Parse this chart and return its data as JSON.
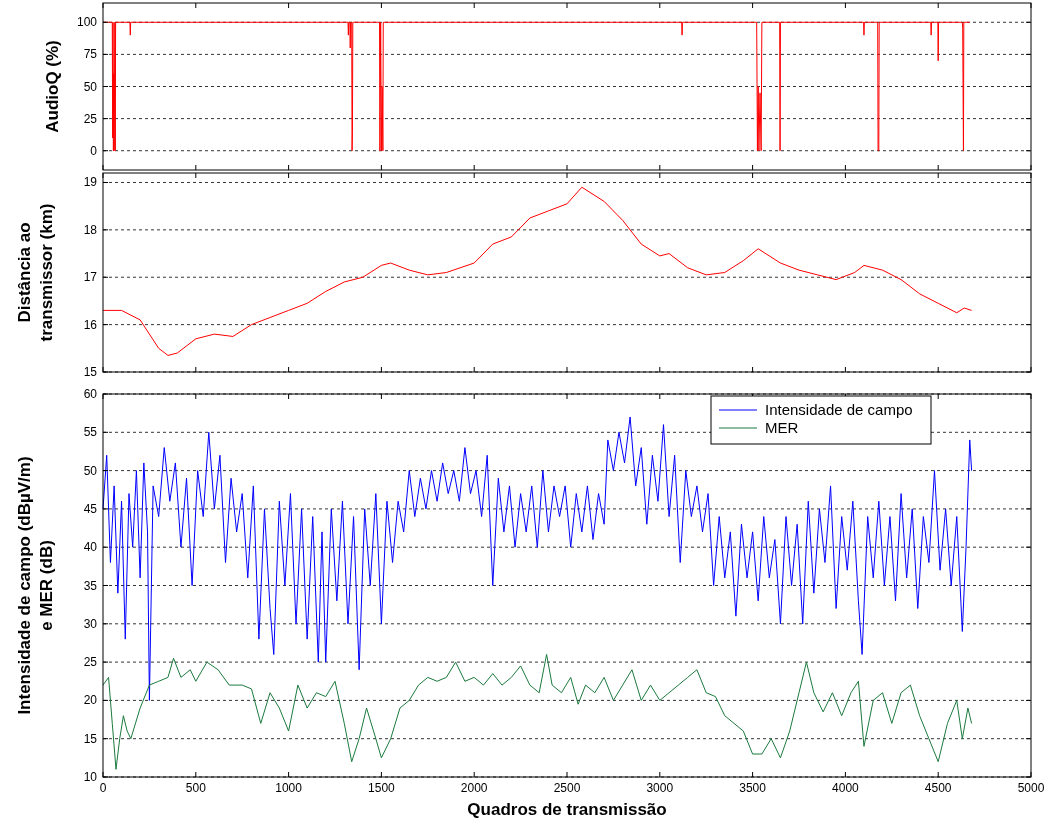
{
  "chart_data": [
    {
      "type": "line",
      "ylabel": "AudioQ (%)",
      "xlim": [
        0,
        5000
      ],
      "xticks": [
        0,
        500,
        1000,
        1500,
        2000,
        2500,
        3000,
        3500,
        4000,
        4500,
        5000
      ],
      "ylim": [
        -15,
        115
      ],
      "yticks": [
        0,
        25,
        50,
        75,
        100
      ],
      "grid": "y",
      "tick_labels": "y",
      "series": [
        {
          "color": "#ff0000",
          "x": [
            0,
            50,
            52,
            54,
            56,
            58,
            60,
            62,
            64,
            66,
            68,
            70,
            145,
            147,
            149,
            1320,
            1322,
            1324,
            1330,
            1332,
            1334,
            1340,
            1342,
            1344,
            1346,
            1490,
            1492,
            1496,
            1500,
            1504,
            1508,
            1510,
            3118,
            3120,
            3122,
            3522,
            3526,
            3530,
            3534,
            3540,
            3546,
            3550,
            3646,
            3648,
            3650,
            4098,
            4100,
            4102,
            4174,
            4176,
            4180,
            4182,
            4460,
            4462,
            4464,
            4498,
            4500,
            4502,
            4630,
            4632,
            4636,
            4638,
            4670
          ],
          "values": [
            100,
            100,
            10,
            100,
            0,
            60,
            0,
            45,
            100,
            0,
            100,
            100,
            100,
            90,
            100,
            100,
            90,
            100,
            100,
            80,
            100,
            100,
            0,
            15,
            100,
            100,
            0,
            100,
            0,
            50,
            0,
            100,
            100,
            90,
            100,
            100,
            0,
            50,
            0,
            45,
            0,
            100,
            100,
            0,
            100,
            100,
            90,
            100,
            100,
            0,
            0,
            100,
            100,
            90,
            100,
            100,
            70,
            100,
            100,
            95,
            0,
            100,
            100
          ]
        }
      ]
    },
    {
      "type": "line",
      "ylabel": "Distância ao\ntransmissor (km)",
      "xlim": [
        0,
        5000
      ],
      "xticks": [
        0,
        500,
        1000,
        1500,
        2000,
        2500,
        3000,
        3500,
        4000,
        4500,
        5000
      ],
      "ylim": [
        15,
        19.2
      ],
      "yticks": [
        15,
        16,
        17,
        18,
        19
      ],
      "grid": "y",
      "tick_labels": "y",
      "series": [
        {
          "color": "#ff0000",
          "x": [
            0,
            100,
            200,
            300,
            350,
            400,
            500,
            600,
            700,
            800,
            900,
            1000,
            1100,
            1200,
            1300,
            1400,
            1500,
            1550,
            1650,
            1750,
            1850,
            2000,
            2100,
            2200,
            2300,
            2400,
            2500,
            2580,
            2700,
            2800,
            2900,
            3000,
            3050,
            3150,
            3250,
            3350,
            3450,
            3530,
            3650,
            3750,
            3850,
            3950,
            4050,
            4100,
            4200,
            4300,
            4400,
            4500,
            4600,
            4640,
            4680
          ],
          "values": [
            16.3,
            16.3,
            16.1,
            15.5,
            15.35,
            15.4,
            15.7,
            15.8,
            15.75,
            16.0,
            16.15,
            16.3,
            16.45,
            16.7,
            16.9,
            17.0,
            17.25,
            17.3,
            17.15,
            17.05,
            17.1,
            17.3,
            17.7,
            17.85,
            18.25,
            18.4,
            18.55,
            18.9,
            18.6,
            18.2,
            17.7,
            17.45,
            17.5,
            17.2,
            17.05,
            17.1,
            17.35,
            17.6,
            17.3,
            17.15,
            17.05,
            16.95,
            17.1,
            17.25,
            17.15,
            16.95,
            16.65,
            16.45,
            16.25,
            16.35,
            16.3
          ]
        }
      ]
    },
    {
      "type": "line",
      "xlabel": "Quadros de transmissão",
      "ylabel": "Intensidade de campo (dBµV/m)\ne MER (dB)",
      "xlim": [
        0,
        5000
      ],
      "xticks": [
        0,
        500,
        1000,
        1500,
        2000,
        2500,
        3000,
        3500,
        4000,
        4500,
        5000
      ],
      "ylim": [
        10,
        60
      ],
      "yticks": [
        10,
        15,
        20,
        25,
        30,
        35,
        40,
        45,
        50,
        55,
        60
      ],
      "grid": "y",
      "legend": "top right",
      "series": [
        {
          "name": "Intensidade de campo",
          "color": "#0000ff",
          "x": [
            0,
            20,
            40,
            60,
            80,
            100,
            120,
            140,
            160,
            180,
            200,
            220,
            240,
            250,
            270,
            300,
            330,
            360,
            390,
            420,
            450,
            480,
            510,
            540,
            570,
            600,
            630,
            660,
            690,
            720,
            750,
            780,
            810,
            840,
            870,
            900,
            920,
            950,
            980,
            1010,
            1040,
            1070,
            1100,
            1130,
            1160,
            1180,
            1200,
            1230,
            1260,
            1290,
            1320,
            1350,
            1380,
            1410,
            1440,
            1470,
            1500,
            1530,
            1560,
            1590,
            1620,
            1650,
            1680,
            1710,
            1740,
            1770,
            1800,
            1830,
            1860,
            1890,
            1920,
            1950,
            1980,
            2010,
            2040,
            2070,
            2100,
            2130,
            2160,
            2190,
            2220,
            2250,
            2280,
            2310,
            2340,
            2370,
            2400,
            2430,
            2460,
            2490,
            2520,
            2550,
            2580,
            2610,
            2640,
            2670,
            2700,
            2720,
            2750,
            2780,
            2810,
            2840,
            2870,
            2900,
            2930,
            2960,
            2990,
            3020,
            3050,
            3080,
            3110,
            3140,
            3170,
            3200,
            3230,
            3260,
            3290,
            3320,
            3350,
            3380,
            3410,
            3440,
            3470,
            3500,
            3530,
            3560,
            3590,
            3620,
            3650,
            3680,
            3710,
            3740,
            3770,
            3800,
            3830,
            3860,
            3890,
            3920,
            3950,
            3980,
            4010,
            4040,
            4070,
            4090,
            4120,
            4150,
            4180,
            4210,
            4240,
            4270,
            4300,
            4330,
            4360,
            4390,
            4420,
            4450,
            4480,
            4510,
            4540,
            4570,
            4600,
            4630,
            4650,
            4670,
            4680
          ],
          "values": [
            45,
            52,
            38,
            48,
            34,
            46,
            28,
            47,
            40,
            50,
            36,
            51,
            42,
            20,
            48,
            44,
            53,
            46,
            51,
            40,
            49,
            35,
            50,
            44,
            55,
            45,
            52,
            38,
            49,
            42,
            47,
            36,
            48,
            28,
            45,
            32,
            26,
            46,
            35,
            47,
            30,
            45,
            28,
            44,
            25,
            42,
            25,
            45,
            33,
            46,
            30,
            44,
            24,
            45,
            35,
            47,
            30,
            46,
            38,
            46,
            42,
            50,
            44,
            49,
            45,
            50,
            46,
            51,
            47,
            50,
            46,
            53,
            47,
            50,
            44,
            52,
            35,
            49,
            42,
            48,
            40,
            47,
            42,
            48,
            40,
            50,
            42,
            48,
            44,
            48,
            40,
            47,
            42,
            48,
            41,
            47,
            43,
            54,
            50,
            55,
            51,
            57,
            48,
            53,
            43,
            52,
            46,
            56,
            44,
            52,
            38,
            50,
            44,
            48,
            42,
            47,
            35,
            44,
            36,
            42,
            31,
            43,
            36,
            42,
            33,
            44,
            36,
            41,
            30,
            44,
            35,
            43,
            30,
            46,
            34,
            45,
            38,
            48,
            32,
            44,
            37,
            46,
            33,
            26,
            44,
            36,
            46,
            35,
            44,
            33,
            47,
            36,
            45,
            32,
            44,
            38,
            50,
            37,
            45,
            35,
            44,
            29,
            40,
            54,
            50
          ]
        },
        {
          "name": "MER",
          "color": "#1b7a3e",
          "x": [
            0,
            30,
            50,
            70,
            90,
            110,
            130,
            150,
            200,
            250,
            300,
            350,
            380,
            420,
            470,
            500,
            560,
            620,
            680,
            750,
            800,
            850,
            900,
            950,
            1000,
            1050,
            1100,
            1150,
            1200,
            1250,
            1300,
            1340,
            1380,
            1420,
            1470,
            1500,
            1550,
            1600,
            1650,
            1700,
            1750,
            1800,
            1850,
            1900,
            1950,
            2000,
            2050,
            2100,
            2150,
            2200,
            2250,
            2300,
            2350,
            2390,
            2420,
            2470,
            2520,
            2560,
            2600,
            2650,
            2700,
            2750,
            2800,
            2850,
            2900,
            2950,
            3000,
            3050,
            3100,
            3150,
            3200,
            3250,
            3300,
            3350,
            3400,
            3450,
            3500,
            3550,
            3600,
            3650,
            3700,
            3750,
            3790,
            3830,
            3880,
            3930,
            3980,
            4030,
            4070,
            4100,
            4150,
            4200,
            4250,
            4300,
            4350,
            4400,
            4450,
            4500,
            4550,
            4600,
            4630,
            4660,
            4680
          ],
          "values": [
            22,
            23,
            17,
            11,
            15,
            18,
            16,
            15,
            19,
            22,
            22.5,
            23,
            25.5,
            23,
            24,
            22.5,
            25,
            24,
            22,
            22,
            21.5,
            17,
            21,
            19,
            16,
            22,
            19,
            21,
            20.5,
            22.5,
            17,
            12,
            15,
            19,
            15,
            12.5,
            15,
            19,
            20,
            22,
            23,
            22.5,
            23,
            25,
            22.5,
            23,
            22,
            23.5,
            22,
            23,
            24.5,
            22,
            21,
            26,
            22,
            21,
            23,
            19.5,
            22,
            21,
            23,
            20,
            22,
            24,
            20,
            22,
            20,
            21,
            22,
            23,
            24,
            21,
            20.5,
            18,
            17,
            16,
            13,
            13,
            15,
            12.5,
            16,
            21,
            25,
            21,
            18.5,
            21,
            18,
            21,
            22.5,
            14,
            20,
            21,
            17,
            21,
            22,
            18,
            15,
            12,
            17,
            20,
            15,
            19,
            17
          ]
        }
      ]
    }
  ]
}
